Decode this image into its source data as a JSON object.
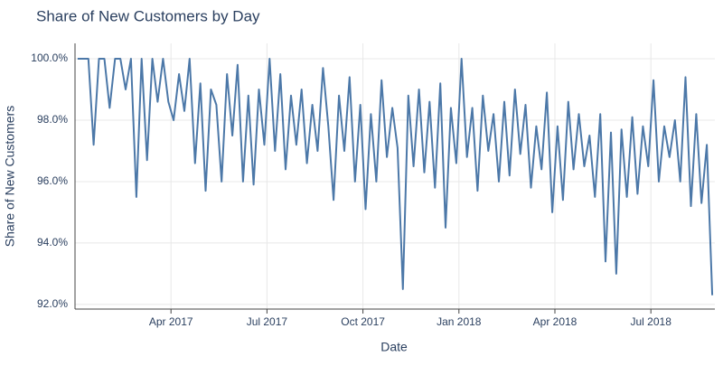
{
  "chart_data": {
    "type": "line",
    "title": "Share of New Customers by Day",
    "x_label": "Date",
    "y_label": "Share of New Customers",
    "x": [
      "2017-01",
      "2017-01",
      "2017-01",
      "2017-01",
      "2017-01",
      "2017-01",
      "2017-02",
      "2017-02",
      "2017-02",
      "2017-02",
      "2017-02",
      "2017-02",
      "2017-03",
      "2017-03",
      "2017-03",
      "2017-03",
      "2017-03",
      "2017-03",
      "2017-04",
      "2017-04",
      "2017-04",
      "2017-04",
      "2017-04",
      "2017-04",
      "2017-05",
      "2017-05",
      "2017-05",
      "2017-05",
      "2017-05",
      "2017-05",
      "2017-06",
      "2017-06",
      "2017-06",
      "2017-06",
      "2017-06",
      "2017-06",
      "2017-07",
      "2017-07",
      "2017-07",
      "2017-07",
      "2017-07",
      "2017-07",
      "2017-08",
      "2017-08",
      "2017-08",
      "2017-08",
      "2017-08",
      "2017-08",
      "2017-09",
      "2017-09",
      "2017-09",
      "2017-09",
      "2017-09",
      "2017-09",
      "2017-10",
      "2017-10",
      "2017-10",
      "2017-10",
      "2017-10",
      "2017-10",
      "2017-11",
      "2017-11",
      "2017-11",
      "2017-11",
      "2017-11",
      "2017-11",
      "2017-12",
      "2017-12",
      "2017-12",
      "2017-12",
      "2017-12",
      "2017-12",
      "2018-01",
      "2018-01",
      "2018-01",
      "2018-01",
      "2018-01",
      "2018-01",
      "2018-02",
      "2018-02",
      "2018-02",
      "2018-02",
      "2018-02",
      "2018-02",
      "2018-03",
      "2018-03",
      "2018-03",
      "2018-03",
      "2018-03",
      "2018-03",
      "2018-04",
      "2018-04",
      "2018-04",
      "2018-04",
      "2018-04",
      "2018-04",
      "2018-05",
      "2018-05",
      "2018-05",
      "2018-05",
      "2018-05",
      "2018-05",
      "2018-06",
      "2018-06",
      "2018-06",
      "2018-06",
      "2018-06",
      "2018-06",
      "2018-07",
      "2018-07",
      "2018-07",
      "2018-07",
      "2018-07",
      "2018-07",
      "2018-08",
      "2018-08",
      "2018-08",
      "2018-08",
      "2018-08",
      "2018-08"
    ],
    "series": [
      {
        "name": "Share of New Customers",
        "color": "#4c78a8",
        "values": [
          100,
          100,
          100,
          97.2,
          100,
          100,
          98.4,
          100,
          100,
          99,
          100,
          95.5,
          100,
          96.7,
          100,
          98.6,
          100,
          98.6,
          98.0,
          99.5,
          98.3,
          100,
          96.6,
          99.2,
          95.7,
          99.0,
          98.5,
          96.0,
          99.5,
          97.5,
          99.8,
          96.0,
          98.8,
          95.9,
          99.0,
          97.2,
          100,
          97.0,
          99.5,
          96.4,
          98.8,
          97.2,
          99.0,
          96.6,
          98.5,
          97.0,
          99.7,
          97.8,
          95.4,
          98.8,
          97.0,
          99.4,
          96.0,
          98.5,
          95.1,
          98.2,
          96.0,
          99.3,
          96.8,
          98.4,
          97.1,
          92.5,
          98.8,
          96.5,
          99.0,
          96.3,
          98.6,
          95.8,
          99.2,
          94.5,
          98.4,
          96.6,
          100,
          96.8,
          98.4,
          95.7,
          98.8,
          97.0,
          98.2,
          96.0,
          98.6,
          96.2,
          99.0,
          96.9,
          98.5,
          95.8,
          97.8,
          96.4,
          98.9,
          95.0,
          97.8,
          95.4,
          98.6,
          96.4,
          98.2,
          96.5,
          97.5,
          95.5,
          98.2,
          93.4,
          97.6,
          93.0,
          97.7,
          95.5,
          98.1,
          95.6,
          97.8,
          96.5,
          99.3,
          96.0,
          97.8,
          96.8,
          98.0,
          96.0,
          99.4,
          95.2,
          98.2,
          95.3,
          97.2,
          92.3
        ]
      }
    ],
    "xlim": [
      "2017-01",
      "2018-09"
    ],
    "xticks": [
      {
        "value": "2017-04",
        "label": "Apr 2017"
      },
      {
        "value": "2017-07",
        "label": "Jul 2017"
      },
      {
        "value": "2017-10",
        "label": "Oct 2017"
      },
      {
        "value": "2018-01",
        "label": "Jan 2018"
      },
      {
        "value": "2018-04",
        "label": "Apr 2018"
      },
      {
        "value": "2018-07",
        "label": "Jul 2018"
      }
    ],
    "ylim": [
      91.85,
      100.5
    ],
    "yticks": [
      {
        "value": 92,
        "label": "92.0%"
      },
      {
        "value": 94,
        "label": "94.0%"
      },
      {
        "value": 96,
        "label": "96.0%"
      },
      {
        "value": 98,
        "label": "98.0%"
      },
      {
        "value": 100,
        "label": "100.0%"
      }
    ],
    "grid": true
  }
}
